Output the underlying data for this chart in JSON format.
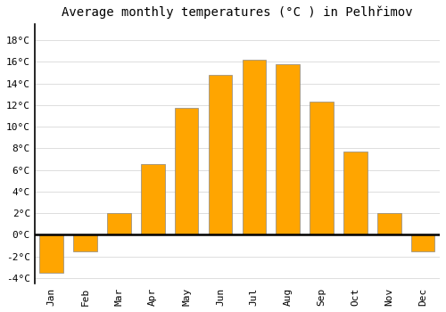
{
  "months": [
    "Jan",
    "Feb",
    "Mar",
    "Apr",
    "May",
    "Jun",
    "Jul",
    "Aug",
    "Sep",
    "Oct",
    "Nov",
    "Dec"
  ],
  "temperatures": [
    -3.5,
    -1.5,
    2.0,
    6.5,
    11.7,
    14.8,
    16.2,
    15.8,
    12.3,
    7.7,
    2.0,
    -1.5
  ],
  "bar_color_top": "#FFA500",
  "bar_color_bottom": "#FFB733",
  "bar_edge_color": "#888888",
  "bar_width": 0.7,
  "title": "Average monthly temperatures (°C ) in Pelhřimov",
  "title_fontsize": 10,
  "ylim": [
    -4.5,
    19.5
  ],
  "yticks": [
    -4,
    -2,
    0,
    2,
    4,
    6,
    8,
    10,
    12,
    14,
    16,
    18
  ],
  "background_color": "#ffffff",
  "plot_bg_color": "#ffffff",
  "grid_color": "#dddddd",
  "zero_line_color": "#000000",
  "tick_label_fontsize": 8,
  "left_spine_color": "#000000"
}
